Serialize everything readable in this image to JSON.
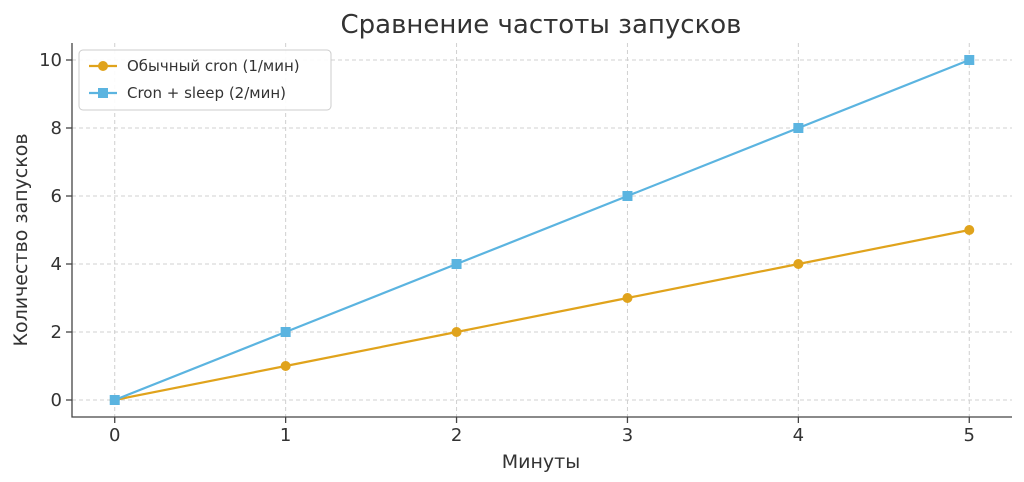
{
  "chart_data": {
    "type": "line",
    "title": "Сравнение частоты запусков",
    "xlabel": "Минуты",
    "ylabel": "Количество запусков",
    "x": [
      0,
      1,
      2,
      3,
      4,
      5
    ],
    "xlim": [
      -0.25,
      5.25
    ],
    "ylim": [
      -0.5,
      10.5
    ],
    "xticks": [
      "0",
      "1",
      "2",
      "3",
      "4",
      "5"
    ],
    "yticks": [
      "0",
      "2",
      "4",
      "6",
      "8",
      "10"
    ],
    "grid": true,
    "legend_position": "top-left",
    "series": [
      {
        "name": "Обычный cron (1/мин)",
        "values": [
          0,
          1,
          2,
          3,
          4,
          5
        ],
        "color": "#E0A31C",
        "marker": "circle"
      },
      {
        "name": "Cron + sleep (2/мин)",
        "values": [
          0,
          2,
          4,
          6,
          8,
          10
        ],
        "color": "#5BB4E0",
        "marker": "square"
      }
    ]
  }
}
